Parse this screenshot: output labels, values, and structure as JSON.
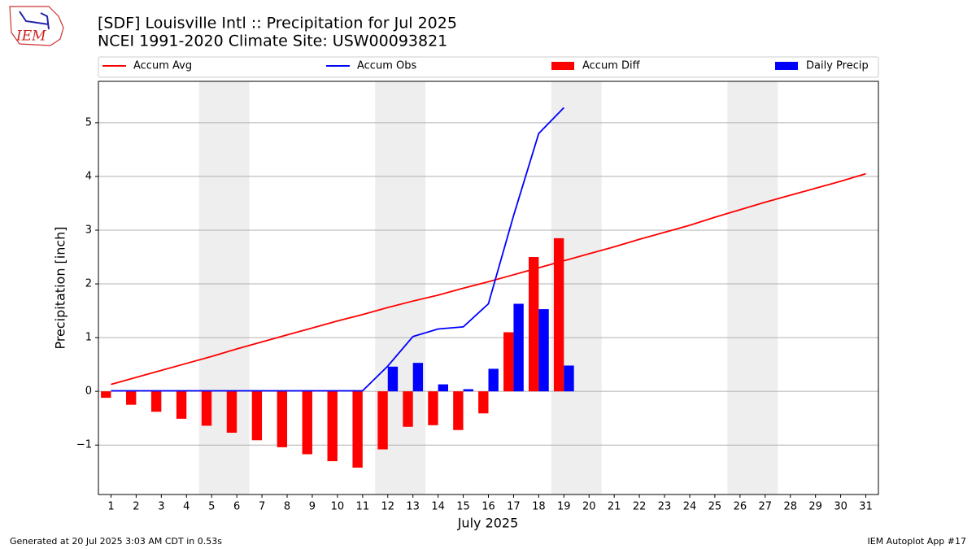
{
  "chart_data": {
    "type": "combo",
    "title": "[SDF] Louisville Intl :: Precipitation for Jul 2025",
    "subtitle": "NCEI 1991-2020 Climate Site: USW00093821",
    "logo_text": "IEM",
    "x_label": "July 2025",
    "y_label": "Precipitation [inch]",
    "footer_left": "Generated at 20 Jul 2025 3:03 AM CDT in 0.53s",
    "footer_right": "IEM Autoplot App #17",
    "x": [
      1,
      2,
      3,
      4,
      5,
      6,
      7,
      8,
      9,
      10,
      11,
      12,
      13,
      14,
      15,
      16,
      17,
      18,
      19,
      20,
      21,
      22,
      23,
      24,
      25,
      26,
      27,
      28,
      29,
      30,
      31
    ],
    "xlim": [
      0.5,
      31.5
    ],
    "xticks": [
      1,
      2,
      3,
      4,
      5,
      6,
      7,
      8,
      9,
      10,
      11,
      12,
      13,
      14,
      15,
      16,
      17,
      18,
      19,
      20,
      21,
      22,
      23,
      24,
      25,
      26,
      27,
      28,
      29,
      30,
      31
    ],
    "ylim": [
      -1.92,
      5.77
    ],
    "yticks": [
      {
        "value": -1,
        "label": "−1"
      },
      0,
      1,
      2,
      3,
      4,
      5
    ],
    "grid": true,
    "shaded_spans": [
      [
        4.5,
        6.5
      ],
      [
        11.5,
        13.5
      ],
      [
        18.5,
        20.5
      ],
      [
        25.5,
        27.5
      ]
    ],
    "shade_color": "#eeeeee",
    "series": [
      {
        "name": "Accum Avg",
        "kind": "line",
        "color": "#ff0000",
        "values": [
          0.13,
          0.26,
          0.39,
          0.52,
          0.65,
          0.79,
          0.92,
          1.05,
          1.18,
          1.31,
          1.43,
          1.56,
          1.68,
          1.79,
          1.92,
          2.04,
          2.17,
          2.3,
          2.43,
          2.56,
          2.69,
          2.83,
          2.96,
          3.09,
          3.24,
          3.38,
          3.52,
          3.65,
          3.78,
          3.91,
          4.05
        ]
      },
      {
        "name": "Accum Obs",
        "kind": "line",
        "color": "#0000ff",
        "values": [
          0.01,
          0.01,
          0.01,
          0.01,
          0.01,
          0.01,
          0.01,
          0.01,
          0.01,
          0.01,
          0.01,
          0.47,
          1.02,
          1.16,
          1.2,
          1.63,
          3.27,
          4.8,
          5.28,
          null,
          null,
          null,
          null,
          null,
          null,
          null,
          null,
          null,
          null,
          null,
          null
        ]
      },
      {
        "name": "Accum Diff",
        "kind": "bar",
        "side": "left",
        "color": "#ff0000",
        "values": [
          -0.12,
          -0.25,
          -0.38,
          -0.51,
          -0.64,
          -0.77,
          -0.91,
          -1.04,
          -1.17,
          -1.3,
          -1.42,
          -1.08,
          -0.66,
          -0.63,
          -0.72,
          -0.41,
          1.1,
          2.5,
          2.85,
          null,
          null,
          null,
          null,
          null,
          null,
          null,
          null,
          null,
          null,
          null,
          null
        ]
      },
      {
        "name": "Daily Precip",
        "kind": "bar",
        "side": "right",
        "color": "#0000ff",
        "values": [
          0.01,
          0,
          0,
          0,
          0,
          0,
          0,
          0,
          0,
          0,
          0,
          0.46,
          0.53,
          0.13,
          0.04,
          0.42,
          1.63,
          1.53,
          0.48,
          null,
          null,
          null,
          null,
          null,
          null,
          null,
          null,
          null,
          null,
          null,
          null
        ]
      }
    ]
  }
}
